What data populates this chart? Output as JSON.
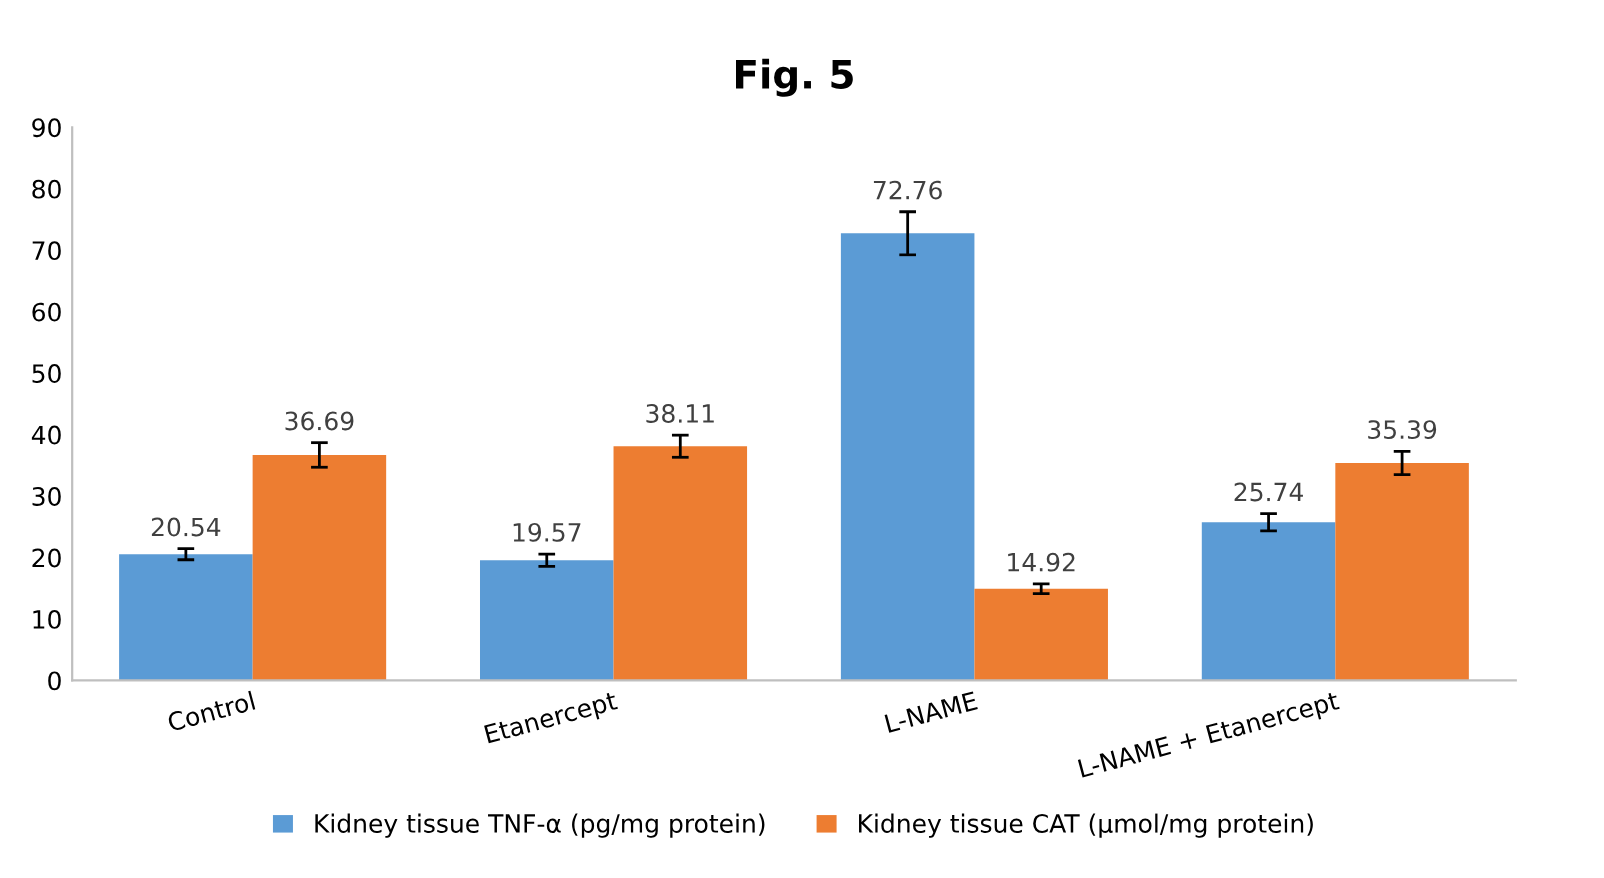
{
  "chart_data": {
    "type": "bar",
    "title": "Fig. 5",
    "categories": [
      "Control",
      "Etanercept",
      "L-NAME",
      "L-NAME + Etanercept"
    ],
    "series": [
      {
        "name": "Kidney tissue TNF-α (pg/mg protein)",
        "color": "#5b9bd5",
        "values": [
          20.54,
          19.57,
          72.76,
          25.74
        ],
        "errors": [
          0.9,
          1.0,
          3.5,
          1.4
        ]
      },
      {
        "name": "Kidney tissue CAT (μmol/mg protein)",
        "color": "#ed7d31",
        "values": [
          36.69,
          38.11,
          14.92,
          35.39
        ],
        "errors": [
          2.0,
          1.8,
          0.8,
          1.9
        ]
      }
    ],
    "ylim": [
      0,
      90
    ],
    "yticks": [
      0,
      10,
      20,
      30,
      40,
      50,
      60,
      70,
      80,
      90
    ],
    "data_labels": true,
    "grid": false,
    "legend": "bottom"
  }
}
